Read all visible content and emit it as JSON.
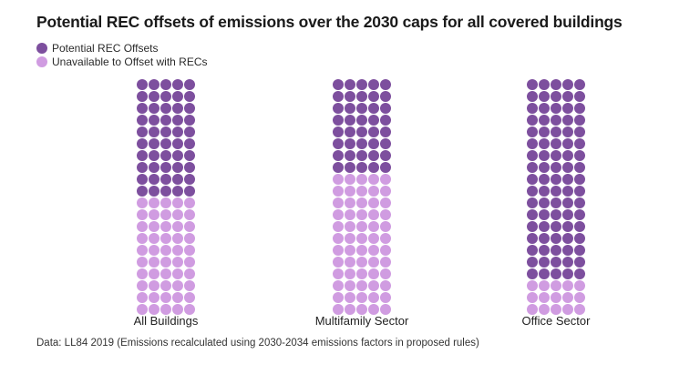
{
  "chart_data": {
    "type": "waffle",
    "title": "Potential REC offsets of emissions over the 2030 caps for all covered buildings",
    "unit_grid": {
      "columns": 5,
      "rows": 20,
      "dot_total": 100
    },
    "categories": [
      "All Buildings",
      "Multifamily Sector",
      "Office Sector"
    ],
    "series": [
      {
        "name": "Potential REC Offsets",
        "values": [
          50,
          40,
          85
        ],
        "color": "#7d4f9e"
      },
      {
        "name": "Unavailable to Offset with RECs",
        "values": [
          50,
          60,
          15
        ],
        "color": "#d09ce1"
      }
    ],
    "fill_direction": "dark-from-top",
    "legend_position": "top-left",
    "note": "Data: LL84 2019 (Emissions recalculated using 2030-2034 emissions factors in proposed rules)"
  },
  "colors": {
    "background": "#ffffff",
    "title_text": "#1a1a1a",
    "label_text": "#222222",
    "note_text": "#333333"
  }
}
